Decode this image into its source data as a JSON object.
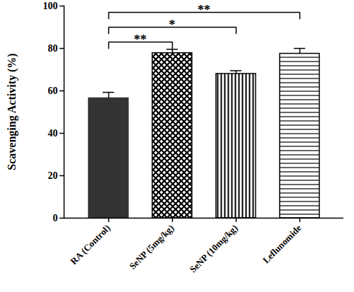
{
  "chart_data": {
    "type": "bar",
    "categories": [
      "RA (Control)",
      "SeNP (5mg/kg)",
      "SeNP (10mg/kg)",
      "Leflunomide"
    ],
    "values": [
      56.5,
      77.8,
      68.0,
      77.5
    ],
    "error": [
      2.8,
      1.8,
      1.5,
      2.5
    ],
    "colors": [
      "#333333",
      "#000000",
      "#000000",
      "#000000"
    ],
    "y_label": "Scavenging Activity (%)",
    "ylim": [
      0,
      100
    ],
    "yticks": [
      0,
      20,
      40,
      60,
      80,
      100
    ],
    "grid": false,
    "significance": [
      {
        "from": "RA (Control)",
        "to": "SeNP (5mg/kg)",
        "label": "**"
      },
      {
        "from": "RA (Control)",
        "to": "SeNP (10mg/kg)",
        "label": "*"
      },
      {
        "from": "RA (Control)",
        "to": "Leflunomide",
        "label": "**"
      }
    ]
  }
}
